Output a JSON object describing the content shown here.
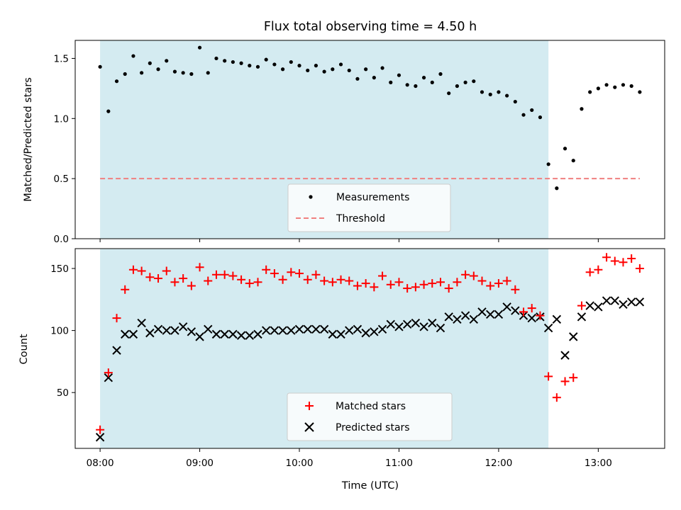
{
  "chart_data": [
    {
      "type": "scatter",
      "title": "Flux total observing time = 4.50 h",
      "xlabel": "",
      "ylabel": "Matched/Predicted stars",
      "ylim": [
        0,
        1.65
      ],
      "yticks": [
        0.0,
        0.5,
        1.0,
        1.5
      ],
      "ytick_labels": [
        "0.0",
        "0.5",
        "1.0",
        "1.5"
      ],
      "shaded_interval": [
        "08:00",
        "12:30"
      ],
      "shaded_color": "#d4ebf1",
      "legend_position": "lower-center",
      "series": [
        {
          "name": "Measurements",
          "marker": "dot",
          "color": "#000000",
          "x": [
            "08:00",
            "08:05",
            "08:10",
            "08:15",
            "08:20",
            "08:25",
            "08:30",
            "08:35",
            "08:40",
            "08:45",
            "08:50",
            "08:55",
            "09:00",
            "09:05",
            "09:10",
            "09:15",
            "09:20",
            "09:25",
            "09:30",
            "09:35",
            "09:40",
            "09:45",
            "09:50",
            "09:55",
            "10:00",
            "10:05",
            "10:10",
            "10:15",
            "10:20",
            "10:25",
            "10:30",
            "10:35",
            "10:40",
            "10:45",
            "10:50",
            "10:55",
            "11:00",
            "11:05",
            "11:10",
            "11:15",
            "11:20",
            "11:25",
            "11:30",
            "11:35",
            "11:40",
            "11:45",
            "11:50",
            "11:55",
            "12:00",
            "12:05",
            "12:10",
            "12:15",
            "12:20",
            "12:25",
            "12:30",
            "12:35",
            "12:40",
            "12:45",
            "12:50",
            "12:55",
            "13:00",
            "13:05",
            "13:10",
            "13:15",
            "13:20",
            "13:25"
          ],
          "y": [
            1.43,
            1.06,
            1.31,
            1.37,
            1.52,
            1.38,
            1.46,
            1.41,
            1.48,
            1.39,
            1.38,
            1.37,
            1.59,
            1.38,
            1.5,
            1.48,
            1.47,
            1.46,
            1.44,
            1.43,
            1.49,
            1.45,
            1.41,
            1.47,
            1.44,
            1.4,
            1.44,
            1.39,
            1.41,
            1.45,
            1.4,
            1.33,
            1.41,
            1.34,
            1.42,
            1.3,
            1.36,
            1.28,
            1.27,
            1.34,
            1.3,
            1.37,
            1.21,
            1.27,
            1.3,
            1.31,
            1.22,
            1.2,
            1.22,
            1.19,
            1.14,
            1.03,
            1.07,
            1.01,
            0.62,
            0.42,
            0.75,
            0.65,
            1.08,
            1.22,
            1.25,
            1.28,
            1.26,
            1.28,
            1.27,
            1.22
          ]
        },
        {
          "name": "Threshold",
          "marker": "dashed-line",
          "color": "#f08080",
          "x": [
            "08:00",
            "13:25"
          ],
          "y": [
            0.5,
            0.5
          ]
        }
      ]
    },
    {
      "type": "scatter",
      "title": "",
      "xlabel": "Time (UTC)",
      "ylabel": "Count",
      "ylim": [
        5,
        166
      ],
      "yticks": [
        50,
        100,
        150
      ],
      "ytick_labels": [
        "50",
        "100",
        "150"
      ],
      "xlim": [
        "07:45",
        "13:40"
      ],
      "xticks": [
        "08:00",
        "09:00",
        "10:00",
        "11:00",
        "12:00",
        "13:00"
      ],
      "shaded_interval": [
        "08:00",
        "12:30"
      ],
      "shaded_color": "#d4ebf1",
      "legend_position": "lower-center",
      "series": [
        {
          "name": "Matched stars",
          "marker": "plus",
          "color": "#ff0000",
          "x": [
            "08:00",
            "08:05",
            "08:10",
            "08:15",
            "08:20",
            "08:25",
            "08:30",
            "08:35",
            "08:40",
            "08:45",
            "08:50",
            "08:55",
            "09:00",
            "09:05",
            "09:10",
            "09:15",
            "09:20",
            "09:25",
            "09:30",
            "09:35",
            "09:40",
            "09:45",
            "09:50",
            "09:55",
            "10:00",
            "10:05",
            "10:10",
            "10:15",
            "10:20",
            "10:25",
            "10:30",
            "10:35",
            "10:40",
            "10:45",
            "10:50",
            "10:55",
            "11:00",
            "11:05",
            "11:10",
            "11:15",
            "11:20",
            "11:25",
            "11:30",
            "11:35",
            "11:40",
            "11:45",
            "11:50",
            "11:55",
            "12:00",
            "12:05",
            "12:10",
            "12:15",
            "12:20",
            "12:25",
            "12:30",
            "12:35",
            "12:40",
            "12:45",
            "12:50",
            "12:55",
            "13:00",
            "13:05",
            "13:10",
            "13:15",
            "13:20",
            "13:25"
          ],
          "y": [
            20,
            66,
            110,
            133,
            149,
            148,
            143,
            142,
            148,
            139,
            142,
            136,
            151,
            140,
            145,
            145,
            144,
            141,
            138,
            139,
            149,
            146,
            141,
            147,
            146,
            141,
            145,
            140,
            139,
            141,
            140,
            136,
            138,
            135,
            144,
            137,
            139,
            134,
            135,
            137,
            138,
            139,
            134,
            139,
            145,
            144,
            140,
            136,
            138,
            140,
            133,
            115,
            118,
            112,
            63,
            46,
            59,
            62,
            120,
            147,
            149,
            159,
            156,
            155,
            158,
            150
          ]
        },
        {
          "name": "Predicted stars",
          "marker": "x",
          "color": "#000000",
          "x": [
            "08:00",
            "08:05",
            "08:10",
            "08:15",
            "08:20",
            "08:25",
            "08:30",
            "08:35",
            "08:40",
            "08:45",
            "08:50",
            "08:55",
            "09:00",
            "09:05",
            "09:10",
            "09:15",
            "09:20",
            "09:25",
            "09:30",
            "09:35",
            "09:40",
            "09:45",
            "09:50",
            "09:55",
            "10:00",
            "10:05",
            "10:10",
            "10:15",
            "10:20",
            "10:25",
            "10:30",
            "10:35",
            "10:40",
            "10:45",
            "10:50",
            "10:55",
            "11:00",
            "11:05",
            "11:10",
            "11:15",
            "11:20",
            "11:25",
            "11:30",
            "11:35",
            "11:40",
            "11:45",
            "11:50",
            "11:55",
            "12:00",
            "12:05",
            "12:10",
            "12:15",
            "12:20",
            "12:25",
            "12:30",
            "12:35",
            "12:40",
            "12:45",
            "12:50",
            "12:55",
            "13:00",
            "13:05",
            "13:10",
            "13:15",
            "13:20",
            "13:25"
          ],
          "y": [
            14,
            62,
            84,
            97,
            97,
            106,
            98,
            101,
            100,
            100,
            103,
            99,
            95,
            101,
            97,
            97,
            97,
            96,
            96,
            97,
            100,
            100,
            100,
            100,
            101,
            101,
            101,
            101,
            97,
            97,
            100,
            101,
            98,
            99,
            101,
            105,
            103,
            105,
            106,
            103,
            106,
            102,
            111,
            109,
            112,
            109,
            115,
            113,
            113,
            119,
            116,
            112,
            110,
            111,
            102,
            109,
            80,
            95,
            111,
            120,
            119,
            124,
            124,
            121,
            123,
            123
          ]
        }
      ]
    }
  ]
}
